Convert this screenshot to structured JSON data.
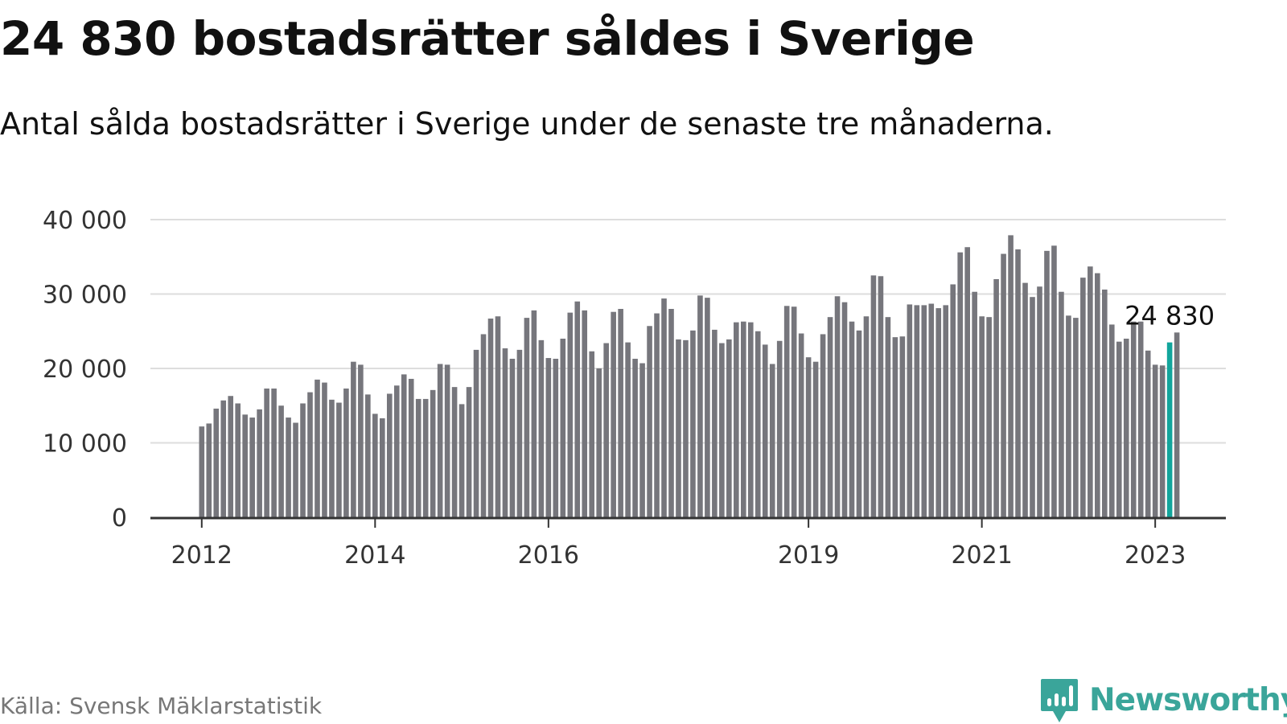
{
  "header": {
    "title": "24 830 bostadsrätter såldes i Sverige",
    "subtitle": "Antal sålda bostadsrätter i Sverige under de senaste tre månaderna."
  },
  "footer": {
    "source": "Källa: Svensk Mäklarstatistik",
    "brand_name": "Newsworthy",
    "brand_icon": "bar-chart-bubble-icon"
  },
  "colors": {
    "bar": "#76767c",
    "highlight": "#12a59c",
    "grid": "#dddddd",
    "axis": "#333333",
    "brand": "#3aa59a"
  },
  "chart_data": {
    "type": "bar",
    "title": "24 830 bostadsrätter såldes i Sverige",
    "subtitle": "Antal sålda bostadsrätter i Sverige under de senaste tre månaderna.",
    "xlabel": "",
    "ylabel": "",
    "ylim": [
      0,
      40000
    ],
    "yticks": [
      0,
      10000,
      20000,
      30000,
      40000
    ],
    "ytick_labels": [
      "0",
      "10 000",
      "20 000",
      "30 000",
      "40 000"
    ],
    "xticks": [
      {
        "label": "2012",
        "index": 0
      },
      {
        "label": "2014",
        "index": 24
      },
      {
        "label": "2016",
        "index": 48
      },
      {
        "label": "2019",
        "index": 84
      },
      {
        "label": "2021",
        "index": 108
      },
      {
        "label": "2023",
        "index": 132
      }
    ],
    "grid": true,
    "legend": "none",
    "highlight_index": 134,
    "highlight_label": "24 830",
    "series": [
      {
        "values": [
          12200,
          12600,
          14600,
          15700,
          16300,
          15300,
          13800,
          13400,
          14500,
          17300,
          17300,
          15000,
          13400,
          12700,
          15300,
          16800,
          18500,
          18100,
          15800,
          15400,
          17300,
          20900,
          20500,
          16500,
          13900,
          13300,
          16600,
          17700,
          19200,
          18600,
          15900,
          15900,
          17100,
          20600,
          20500,
          17500,
          15200,
          17500,
          22500,
          24600,
          26700,
          27000,
          22700,
          21300,
          22500,
          26800,
          27800,
          23800,
          21400,
          21300,
          24000,
          27500,
          29000,
          27800,
          22300,
          20000,
          23400,
          27600,
          28000,
          23500,
          21300,
          20700,
          25700,
          27400,
          29400,
          28000,
          23900,
          23800,
          25100,
          29800,
          29500,
          25200,
          23400,
          23900,
          26200,
          26300,
          26200,
          25000,
          23200,
          20600,
          23700,
          28400,
          28300,
          24700,
          21500,
          20900,
          24600,
          26900,
          29700,
          28900,
          26300,
          25100,
          27000,
          32500,
          32400,
          26900,
          24200,
          24300,
          28600,
          28500,
          28500,
          28700,
          28100,
          28500,
          31300,
          35600,
          36300,
          30300,
          27000,
          26900,
          32000,
          35400,
          37900,
          36000,
          31500,
          29600,
          31000,
          35800,
          36500,
          30300,
          27100,
          26800,
          32200,
          33700,
          32800,
          30600,
          25900,
          23600,
          24000,
          26300,
          26300,
          22400,
          20500,
          20400,
          23500,
          24830
        ]
      }
    ]
  }
}
